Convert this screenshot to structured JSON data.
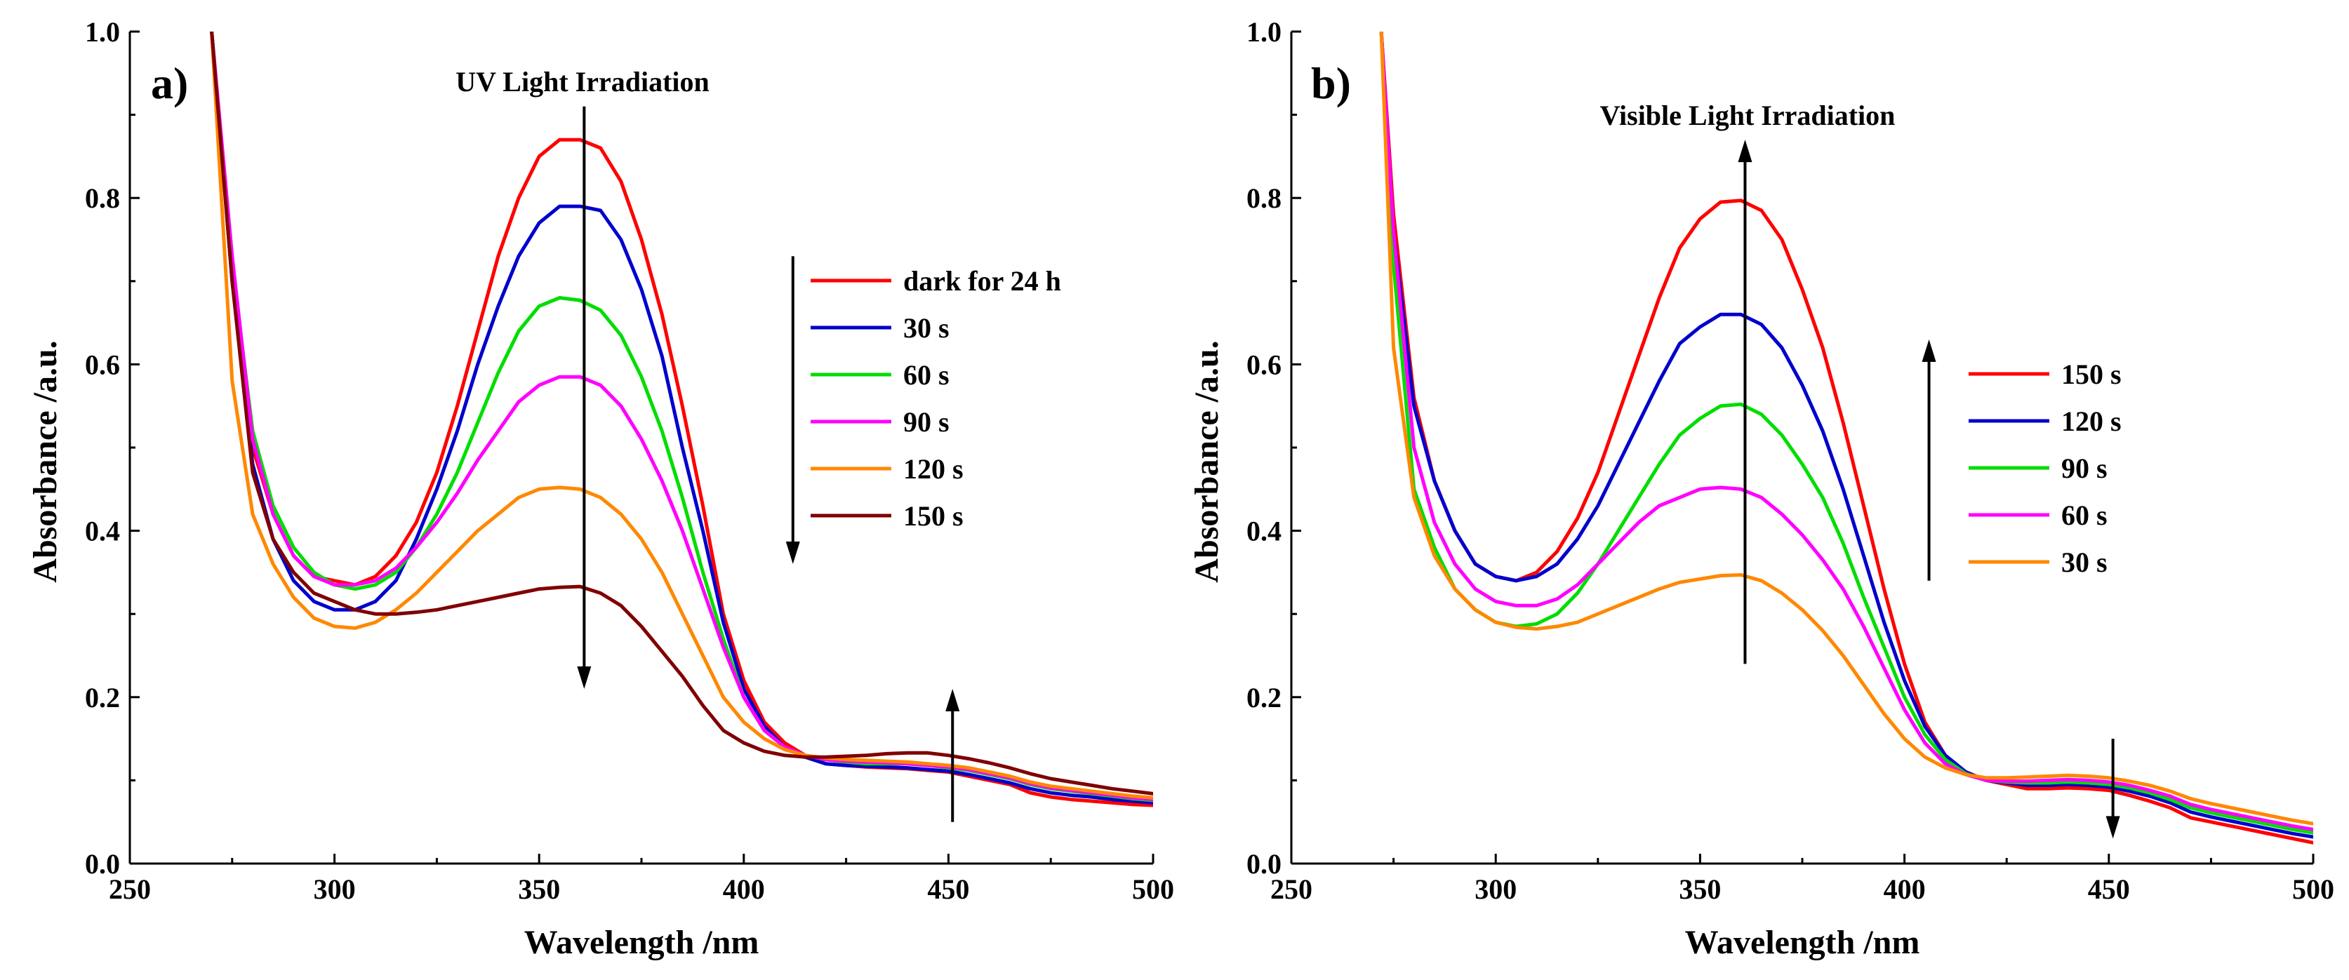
{
  "chart_data": [
    {
      "type": "line",
      "panel_label": "a)",
      "title": "",
      "annotation": "UV Light Irradiation",
      "xlabel": "Wavelength /nm",
      "ylabel": "Absorbance /a.u.",
      "xlim": [
        250,
        500
      ],
      "ylim": [
        0.0,
        1.0
      ],
      "xticks": [
        250,
        300,
        350,
        400,
        450,
        500
      ],
      "yticks": [
        0.0,
        0.2,
        0.4,
        0.6,
        0.8,
        1.0
      ],
      "xtick_labels": [
        "250",
        "300",
        "350",
        "400",
        "450",
        "500"
      ],
      "ytick_labels": [
        "0.0",
        "0.2",
        "0.4",
        "0.6",
        "0.8",
        "1.0"
      ],
      "grid": false,
      "legend_position": "right",
      "x": [
        270,
        275,
        280,
        285,
        290,
        295,
        300,
        305,
        310,
        315,
        320,
        325,
        330,
        335,
        340,
        345,
        350,
        355,
        360,
        365,
        370,
        375,
        380,
        385,
        390,
        395,
        400,
        405,
        410,
        415,
        420,
        425,
        430,
        435,
        440,
        445,
        450,
        455,
        460,
        465,
        470,
        475,
        480,
        485,
        490,
        495,
        500
      ],
      "series": [
        {
          "name": "dark for 24 h",
          "color": "#ff0000",
          "values": [
            1.0,
            0.72,
            0.5,
            0.42,
            0.37,
            0.345,
            0.34,
            0.335,
            0.345,
            0.37,
            0.41,
            0.47,
            0.55,
            0.64,
            0.73,
            0.8,
            0.85,
            0.87,
            0.87,
            0.86,
            0.82,
            0.75,
            0.66,
            0.55,
            0.43,
            0.3,
            0.22,
            0.17,
            0.145,
            0.13,
            0.12,
            0.118,
            0.116,
            0.115,
            0.114,
            0.112,
            0.11,
            0.105,
            0.1,
            0.095,
            0.085,
            0.08,
            0.077,
            0.075,
            0.073,
            0.071,
            0.07
          ]
        },
        {
          "name": "30 s",
          "color": "#0000cc",
          "values": [
            1.0,
            0.7,
            0.48,
            0.39,
            0.34,
            0.315,
            0.305,
            0.305,
            0.315,
            0.34,
            0.39,
            0.45,
            0.52,
            0.6,
            0.67,
            0.73,
            0.77,
            0.79,
            0.79,
            0.785,
            0.75,
            0.69,
            0.61,
            0.5,
            0.4,
            0.29,
            0.21,
            0.165,
            0.14,
            0.128,
            0.12,
            0.118,
            0.117,
            0.116,
            0.115,
            0.113,
            0.111,
            0.107,
            0.102,
            0.097,
            0.09,
            0.085,
            0.082,
            0.08,
            0.077,
            0.075,
            0.073
          ]
        },
        {
          "name": "60 s",
          "color": "#00dd00",
          "values": [
            1.0,
            0.72,
            0.52,
            0.43,
            0.38,
            0.35,
            0.335,
            0.33,
            0.335,
            0.35,
            0.38,
            0.42,
            0.47,
            0.53,
            0.59,
            0.64,
            0.67,
            0.68,
            0.677,
            0.665,
            0.635,
            0.585,
            0.52,
            0.44,
            0.35,
            0.27,
            0.2,
            0.16,
            0.14,
            0.13,
            0.125,
            0.122,
            0.12,
            0.12,
            0.12,
            0.118,
            0.115,
            0.112,
            0.107,
            0.102,
            0.095,
            0.09,
            0.087,
            0.084,
            0.081,
            0.078,
            0.076
          ]
        },
        {
          "name": "90 s",
          "color": "#ff00ff",
          "values": [
            1.0,
            0.73,
            0.51,
            0.42,
            0.37,
            0.345,
            0.335,
            0.335,
            0.34,
            0.355,
            0.38,
            0.41,
            0.445,
            0.485,
            0.52,
            0.555,
            0.575,
            0.585,
            0.585,
            0.575,
            0.55,
            0.51,
            0.46,
            0.4,
            0.33,
            0.26,
            0.2,
            0.16,
            0.14,
            0.13,
            0.125,
            0.123,
            0.122,
            0.121,
            0.12,
            0.118,
            0.116,
            0.113,
            0.108,
            0.103,
            0.096,
            0.091,
            0.088,
            0.085,
            0.082,
            0.079,
            0.077
          ]
        },
        {
          "name": "120 s",
          "color": "#ff8800",
          "values": [
            1.0,
            0.58,
            0.42,
            0.36,
            0.32,
            0.295,
            0.285,
            0.283,
            0.29,
            0.305,
            0.325,
            0.35,
            0.375,
            0.4,
            0.42,
            0.44,
            0.45,
            0.452,
            0.45,
            0.44,
            0.42,
            0.39,
            0.35,
            0.3,
            0.25,
            0.2,
            0.17,
            0.15,
            0.137,
            0.13,
            0.127,
            0.125,
            0.124,
            0.123,
            0.122,
            0.12,
            0.118,
            0.115,
            0.11,
            0.105,
            0.098,
            0.093,
            0.09,
            0.087,
            0.084,
            0.081,
            0.079
          ]
        },
        {
          "name": "150 s",
          "color": "#800000",
          "values": [
            1.0,
            0.7,
            0.47,
            0.39,
            0.35,
            0.325,
            0.315,
            0.305,
            0.3,
            0.3,
            0.302,
            0.305,
            0.31,
            0.315,
            0.32,
            0.325,
            0.33,
            0.332,
            0.333,
            0.325,
            0.31,
            0.285,
            0.255,
            0.225,
            0.19,
            0.16,
            0.145,
            0.135,
            0.13,
            0.128,
            0.128,
            0.129,
            0.13,
            0.132,
            0.133,
            0.133,
            0.13,
            0.126,
            0.121,
            0.115,
            0.108,
            0.102,
            0.098,
            0.094,
            0.09,
            0.087,
            0.084
          ]
        }
      ],
      "arrows": [
        {
          "direction": "down",
          "x": 361,
          "from": 0.91,
          "to": 0.21,
          "long": true
        },
        {
          "direction": "down",
          "x": 412,
          "from": 0.73,
          "to": 0.36
        },
        {
          "direction": "up",
          "x": 451,
          "from": 0.05,
          "to": 0.21
        }
      ]
    },
    {
      "type": "line",
      "panel_label": "b)",
      "title": "",
      "annotation": "Visible Light Irradiation",
      "xlabel": "Wavelength /nm",
      "ylabel": "Absorbance /a.u.",
      "xlim": [
        250,
        500
      ],
      "ylim": [
        0.0,
        1.0
      ],
      "xticks": [
        250,
        300,
        350,
        400,
        450,
        500
      ],
      "yticks": [
        0.0,
        0.2,
        0.4,
        0.6,
        0.8,
        1.0
      ],
      "xtick_labels": [
        "250",
        "300",
        "350",
        "400",
        "450",
        "500"
      ],
      "ytick_labels": [
        "0.0",
        "0.2",
        "0.4",
        "0.6",
        "0.8",
        "1.0"
      ],
      "grid": false,
      "legend_position": "right",
      "x": [
        272,
        275,
        280,
        285,
        290,
        295,
        300,
        305,
        310,
        315,
        320,
        325,
        330,
        335,
        340,
        345,
        350,
        355,
        360,
        365,
        370,
        375,
        380,
        385,
        390,
        395,
        400,
        405,
        410,
        415,
        420,
        425,
        430,
        435,
        440,
        445,
        450,
        455,
        460,
        465,
        470,
        475,
        480,
        485,
        490,
        495,
        500
      ],
      "series": [
        {
          "name": "150 s",
          "color": "#ff0000",
          "values": [
            1.0,
            0.78,
            0.56,
            0.46,
            0.4,
            0.36,
            0.345,
            0.34,
            0.35,
            0.375,
            0.415,
            0.47,
            0.54,
            0.61,
            0.68,
            0.74,
            0.775,
            0.795,
            0.797,
            0.785,
            0.75,
            0.69,
            0.62,
            0.53,
            0.43,
            0.33,
            0.24,
            0.17,
            0.13,
            0.11,
            0.1,
            0.095,
            0.09,
            0.09,
            0.091,
            0.09,
            0.088,
            0.082,
            0.075,
            0.067,
            0.055,
            0.05,
            0.045,
            0.04,
            0.035,
            0.03,
            0.025
          ]
        },
        {
          "name": "120 s",
          "color": "#0000cc",
          "values": [
            1.0,
            0.76,
            0.55,
            0.46,
            0.4,
            0.36,
            0.345,
            0.34,
            0.345,
            0.36,
            0.39,
            0.43,
            0.48,
            0.53,
            0.58,
            0.625,
            0.645,
            0.66,
            0.66,
            0.648,
            0.62,
            0.575,
            0.52,
            0.45,
            0.37,
            0.29,
            0.22,
            0.165,
            0.13,
            0.11,
            0.1,
            0.097,
            0.094,
            0.094,
            0.095,
            0.094,
            0.092,
            0.087,
            0.081,
            0.073,
            0.062,
            0.056,
            0.051,
            0.046,
            0.041,
            0.036,
            0.032
          ]
        },
        {
          "name": "90 s",
          "color": "#00dd00",
          "values": [
            1.0,
            0.72,
            0.45,
            0.38,
            0.33,
            0.305,
            0.29,
            0.285,
            0.288,
            0.3,
            0.325,
            0.36,
            0.4,
            0.44,
            0.48,
            0.515,
            0.535,
            0.55,
            0.552,
            0.54,
            0.515,
            0.48,
            0.44,
            0.385,
            0.32,
            0.26,
            0.2,
            0.155,
            0.125,
            0.108,
            0.1,
            0.098,
            0.097,
            0.097,
            0.098,
            0.097,
            0.095,
            0.091,
            0.085,
            0.077,
            0.067,
            0.061,
            0.056,
            0.051,
            0.046,
            0.041,
            0.037
          ]
        },
        {
          "name": "60 s",
          "color": "#ff00ff",
          "values": [
            1.0,
            0.76,
            0.5,
            0.41,
            0.36,
            0.33,
            0.315,
            0.31,
            0.31,
            0.318,
            0.335,
            0.36,
            0.385,
            0.41,
            0.43,
            0.44,
            0.45,
            0.452,
            0.45,
            0.44,
            0.42,
            0.395,
            0.365,
            0.33,
            0.285,
            0.235,
            0.185,
            0.145,
            0.12,
            0.107,
            0.1,
            0.099,
            0.099,
            0.1,
            0.101,
            0.1,
            0.098,
            0.094,
            0.088,
            0.081,
            0.071,
            0.065,
            0.06,
            0.055,
            0.05,
            0.045,
            0.041
          ]
        },
        {
          "name": "30 s",
          "color": "#ff8800",
          "values": [
            1.0,
            0.62,
            0.44,
            0.37,
            0.33,
            0.305,
            0.29,
            0.284,
            0.282,
            0.285,
            0.29,
            0.3,
            0.31,
            0.32,
            0.33,
            0.338,
            0.342,
            0.346,
            0.347,
            0.34,
            0.325,
            0.305,
            0.28,
            0.25,
            0.215,
            0.18,
            0.15,
            0.128,
            0.115,
            0.107,
            0.103,
            0.103,
            0.104,
            0.105,
            0.106,
            0.105,
            0.103,
            0.099,
            0.094,
            0.087,
            0.078,
            0.072,
            0.067,
            0.062,
            0.057,
            0.052,
            0.048
          ]
        }
      ],
      "arrows": [
        {
          "direction": "up",
          "x": 361,
          "from": 0.24,
          "to": 0.87,
          "long": true
        },
        {
          "direction": "up",
          "x": 406,
          "from": 0.34,
          "to": 0.63
        },
        {
          "direction": "down",
          "x": 451,
          "from": 0.15,
          "to": 0.03
        }
      ]
    }
  ]
}
